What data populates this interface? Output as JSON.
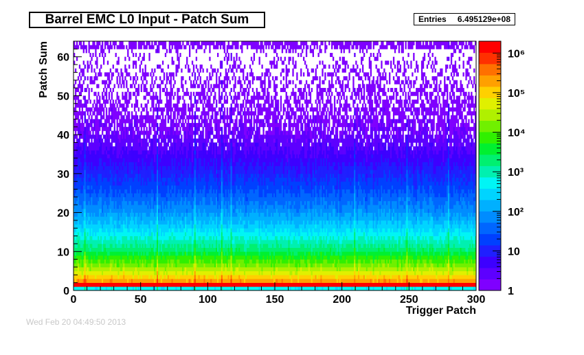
{
  "title": "Barrel EMC L0 Input - Patch Sum",
  "stats": {
    "label": "Entries",
    "value": "6.495129e+08"
  },
  "footer_text": "Wed Feb 20 04:49:50 2013",
  "chart_data": {
    "type": "heatmap",
    "title": "Barrel EMC L0 Input - Patch Sum",
    "xlabel": "Trigger Patch",
    "ylabel": "Patch Sum",
    "xlim": [
      0,
      300
    ],
    "ylim": [
      0,
      64
    ],
    "x_ticks": [
      0,
      50,
      100,
      150,
      200,
      250,
      300
    ],
    "y_ticks": [
      0,
      10,
      20,
      30,
      40,
      50,
      60
    ],
    "z_scale": "log",
    "z_range": [
      1,
      2000000
    ],
    "z_ticks": [
      {
        "value": 1,
        "label": "1"
      },
      {
        "value": 10,
        "label": "10"
      },
      {
        "value": 100,
        "label": "10²"
      },
      {
        "value": 1000,
        "label": "10³"
      },
      {
        "value": 10000,
        "label": "10⁴"
      },
      {
        "value": 100000,
        "label": "10⁵"
      },
      {
        "value": 1000000,
        "label": "10⁶"
      }
    ],
    "palette": [
      "#7f00ff",
      "#5d00ff",
      "#3d00ff",
      "#1f1fff",
      "#0040ff",
      "#0066ff",
      "#008cff",
      "#00b0ff",
      "#00d4ff",
      "#00f5f5",
      "#00f0b0",
      "#00f070",
      "#00f030",
      "#30f000",
      "#70f000",
      "#b0f000",
      "#e0f000",
      "#ffd000",
      "#ffa000",
      "#ff7000",
      "#ff3000",
      "#ff0000"
    ],
    "row_levels": [
      {
        "y": 0,
        "value": 500
      },
      {
        "y": 1,
        "value": 2000000
      },
      {
        "y": 2,
        "value": 200000
      },
      {
        "y": 4,
        "value": 50000
      },
      {
        "y": 6,
        "value": 15000
      },
      {
        "y": 8,
        "value": 6000
      },
      {
        "y": 10,
        "value": 2000
      },
      {
        "y": 13,
        "value": 700
      },
      {
        "y": 16,
        "value": 250
      },
      {
        "y": 20,
        "value": 80
      },
      {
        "y": 25,
        "value": 25
      },
      {
        "y": 30,
        "value": 10
      },
      {
        "y": 35,
        "value": 4
      },
      {
        "y": 40,
        "value": 2
      },
      {
        "y": 45,
        "value": 1.4
      },
      {
        "y": 50,
        "value": 1.1
      },
      {
        "y": 55,
        "value": 1
      },
      {
        "y": 63,
        "value": 1
      }
    ],
    "hot_patches": [
      8,
      62,
      90,
      110,
      117,
      209,
      248,
      279
    ]
  }
}
